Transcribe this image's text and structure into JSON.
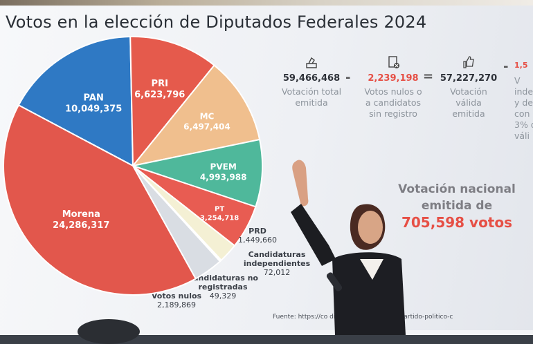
{
  "title": "Votos en la elección de Diputados Federales 2024",
  "chart_data": {
    "type": "pie",
    "title": "Votos en la elección de Diputados Federales 2024",
    "slices": [
      {
        "name": "PAN",
        "value": "10,049,375",
        "v": 10049375,
        "color": "#2f79c4"
      },
      {
        "name": "PRI",
        "value": "6,623,796",
        "v": 6623796,
        "color": "#e55a4c"
      },
      {
        "name": "MC",
        "value": "6,497,404",
        "v": 6497404,
        "color": "#f0bf8e"
      },
      {
        "name": "PVEM",
        "value": "4,993,988",
        "v": 4993988,
        "color": "#4fb89b"
      },
      {
        "name": "PT",
        "value": "3,254,718",
        "v": 3254718,
        "color": "#e85c52"
      },
      {
        "name": "PRD",
        "value": "1,449,660",
        "v": 1449660,
        "color": "#f4f0d4"
      },
      {
        "name": "Candidaturas independientes",
        "value": "72,012",
        "v": 72012,
        "color": "#e8eaee"
      },
      {
        "name": "Candidaturas no registradas",
        "value": "49,329",
        "v": 49329,
        "color": "#eef0f3"
      },
      {
        "name": "Votos nulos",
        "value": "2,189,869",
        "v": 2189869,
        "color": "#d9dde3"
      },
      {
        "name": "Morena",
        "value": "24,286,317",
        "v": 24286317,
        "color": "#e2574c"
      }
    ]
  },
  "formula": {
    "total": {
      "value": "59,466,468",
      "caption": [
        "Votación total",
        "emitida"
      ]
    },
    "minus1": "-",
    "nulos": {
      "value": "2,239,198",
      "caption": [
        "Votos nulos o",
        "a candidatos",
        "sin registro"
      ]
    },
    "equals": "=",
    "valida": {
      "value": "57,227,270",
      "caption": [
        "Votación",
        "válida",
        "emitida"
      ]
    },
    "minus2": "-",
    "partial": {
      "value": "1,5",
      "caption": [
        "V",
        "indep",
        "y de",
        "con",
        "3% d",
        "váli"
      ]
    }
  },
  "national": {
    "line1": "Votación nacional",
    "line2": "emitida de",
    "line3": "705,598 votos"
  },
  "source": "Fuente: https://co          diputaciones/nacional/partido-politico-c"
}
